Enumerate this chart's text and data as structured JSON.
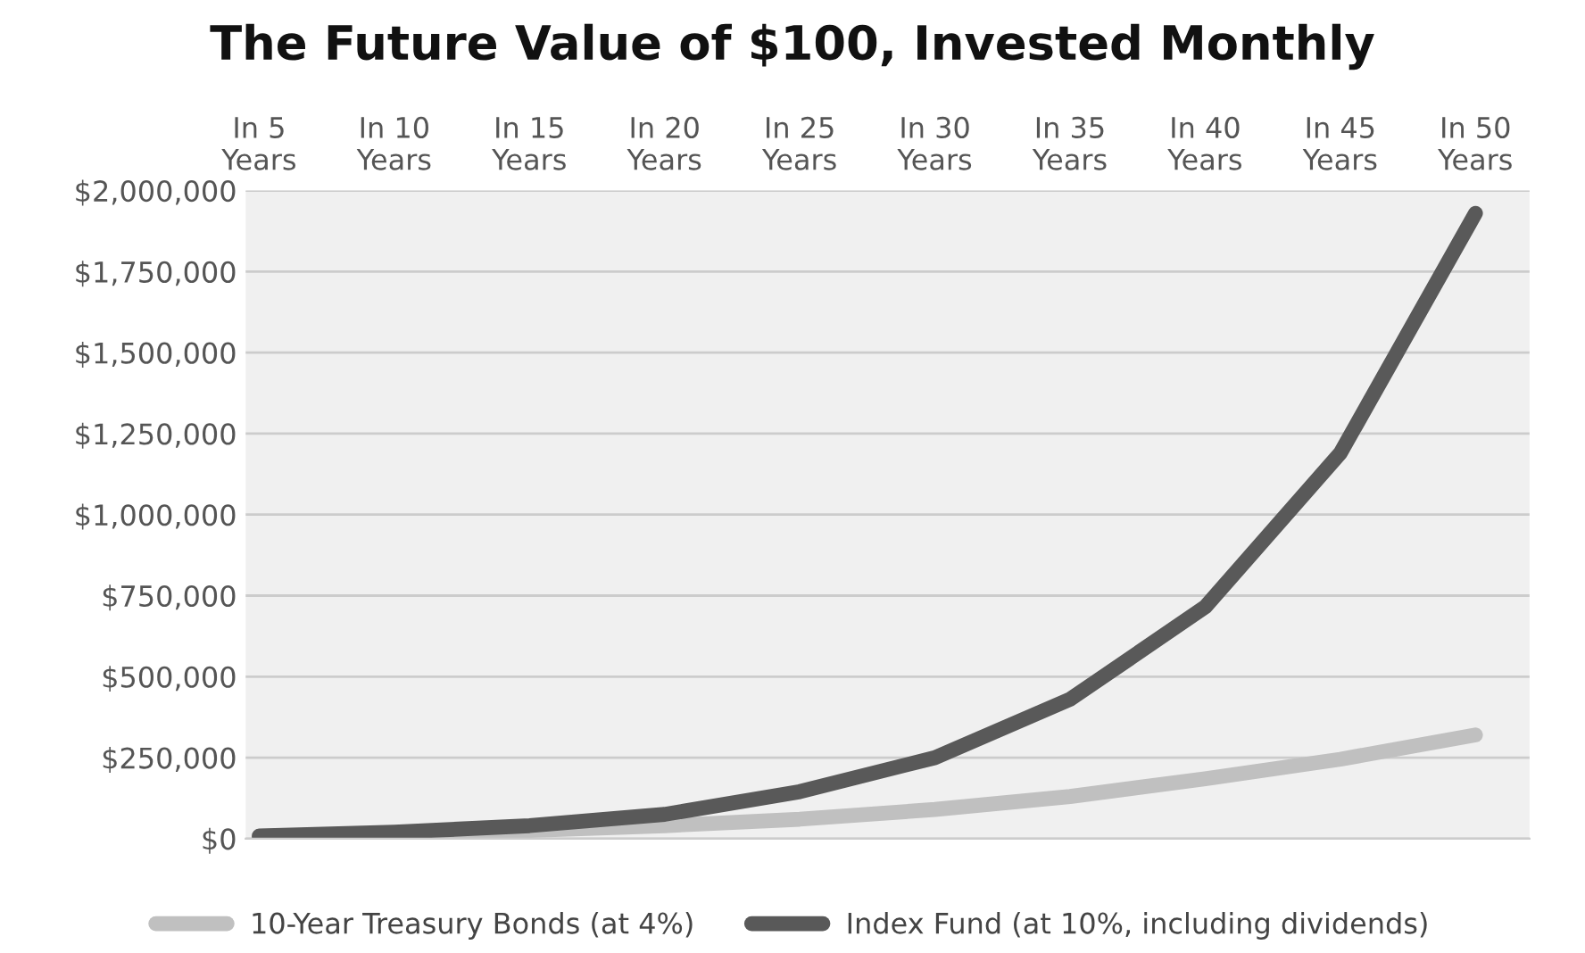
{
  "chart_data": {
    "type": "line",
    "title": "The Future Value of $100, Invested Monthly",
    "categories": [
      "In 5\nYears",
      "In 10\nYears",
      "In 15\nYears",
      "In 20\nYears",
      "In 25\nYears",
      "In 30\nYears",
      "In 35\nYears",
      "In 40\nYears",
      "In 45\nYears",
      "In 50\nYears"
    ],
    "series": [
      {
        "name": "10-Year Treasury Bonds (at 4%)",
        "color": "#c0c0c0",
        "values": [
          7000,
          15000,
          25000,
          40000,
          60000,
          90000,
          130000,
          185000,
          245000,
          320000
        ]
      },
      {
        "name": "Index Fund (at 10%, including dividends)",
        "color": "#595959",
        "values": [
          8000,
          20000,
          40000,
          75000,
          145000,
          250000,
          430000,
          715000,
          1190000,
          1930000
        ]
      }
    ],
    "ylim": [
      0,
      2000000
    ],
    "yticks": [
      {
        "value": 0,
        "label": "$0"
      },
      {
        "value": 250000,
        "label": "$250,000"
      },
      {
        "value": 500000,
        "label": "$500,000"
      },
      {
        "value": 750000,
        "label": "$750,000"
      },
      {
        "value": 1000000,
        "label": "$1,000,000"
      },
      {
        "value": 1250000,
        "label": "$1,250,000"
      },
      {
        "value": 1500000,
        "label": "$1,500,000"
      },
      {
        "value": 1750000,
        "label": "$1,750,000"
      },
      {
        "value": 2000000,
        "label": "$2,000,000"
      }
    ],
    "grid": "y",
    "legend": "bottom",
    "marker": "none",
    "line_style": "solid"
  }
}
